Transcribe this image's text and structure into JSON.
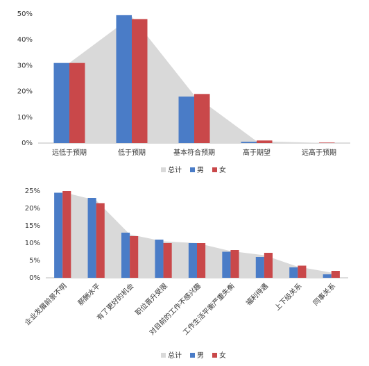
{
  "chart_data": [
    {
      "type": "bar",
      "categories": [
        "远低于预期",
        "低于预期",
        "基本符合预期",
        "高于期望",
        "远高于预期"
      ],
      "series": [
        {
          "name": "总计",
          "type": "area",
          "color": "#d9d9d9",
          "values": [
            31,
            49,
            18.5,
            0.7,
            0.1
          ]
        },
        {
          "name": "男",
          "type": "bar",
          "color": "#4a7cc7",
          "values": [
            31,
            49.5,
            18,
            0.5,
            0
          ]
        },
        {
          "name": "女",
          "type": "bar",
          "color": "#c9484a",
          "values": [
            31,
            48,
            19,
            1,
            0.2
          ]
        }
      ],
      "ylim": [
        0,
        50
      ],
      "yticks": [
        {
          "value": 0,
          "label": "0%"
        },
        {
          "value": 10,
          "label": "10%"
        },
        {
          "value": 20,
          "label": "20%"
        },
        {
          "value": 30,
          "label": "30%"
        },
        {
          "value": 40,
          "label": "40%"
        },
        {
          "value": 50,
          "label": "50%"
        }
      ],
      "legend": "bottom"
    },
    {
      "type": "bar",
      "categories": [
        "企业发展前景不明",
        "薪酬水平",
        "有了更好的机会",
        "职位晋升受限",
        "对目前的工作不感兴趣",
        "工作生活平衡严重失衡",
        "福利待遇",
        "上下级关系",
        "同事关系"
      ],
      "series": [
        {
          "name": "总计",
          "type": "area",
          "color": "#d9d9d9",
          "values": [
            24.7,
            22.3,
            12.5,
            10.5,
            10,
            7.7,
            6.5,
            3.2,
            1.5
          ]
        },
        {
          "name": "男",
          "type": "bar",
          "color": "#4a7cc7",
          "values": [
            24.5,
            23,
            13,
            11,
            10,
            7.5,
            6,
            3,
            1
          ]
        },
        {
          "name": "女",
          "type": "bar",
          "color": "#c9484a",
          "values": [
            25,
            21.5,
            12,
            10,
            10,
            8,
            7.2,
            3.5,
            2
          ]
        }
      ],
      "ylim": [
        0,
        25
      ],
      "yticks": [
        {
          "value": 0,
          "label": "0%"
        },
        {
          "value": 5,
          "label": "5%"
        },
        {
          "value": 10,
          "label": "10%"
        },
        {
          "value": 15,
          "label": "15%"
        },
        {
          "value": 20,
          "label": "20%"
        },
        {
          "value": 25,
          "label": "25%"
        }
      ],
      "legend": "bottom",
      "rotate_labels": true
    }
  ]
}
